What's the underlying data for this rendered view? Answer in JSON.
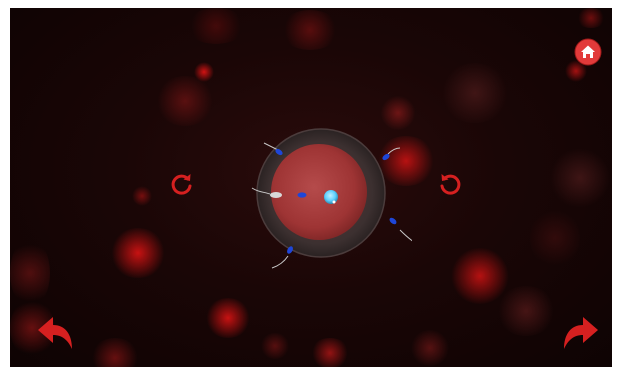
{
  "game": {
    "colors": {
      "background": "#120404",
      "accent": "#d62020",
      "cell_glow": "#e11a1a",
      "nucleus": "#5fd0ff",
      "sperm_blue": "#1e46d8",
      "sperm_white": "#d8d8d8"
    },
    "controls": {
      "home_icon": "home-icon",
      "rotate_left_icon": "rotate-counterclockwise-icon",
      "rotate_right_icon": "rotate-clockwise-icon",
      "undo_icon": "undo-arrow-icon",
      "redo_icon": "redo-arrow-icon"
    },
    "scene": {
      "center_object": "egg-cell",
      "sperm_count": 6,
      "center_marker": "nucleus"
    }
  }
}
